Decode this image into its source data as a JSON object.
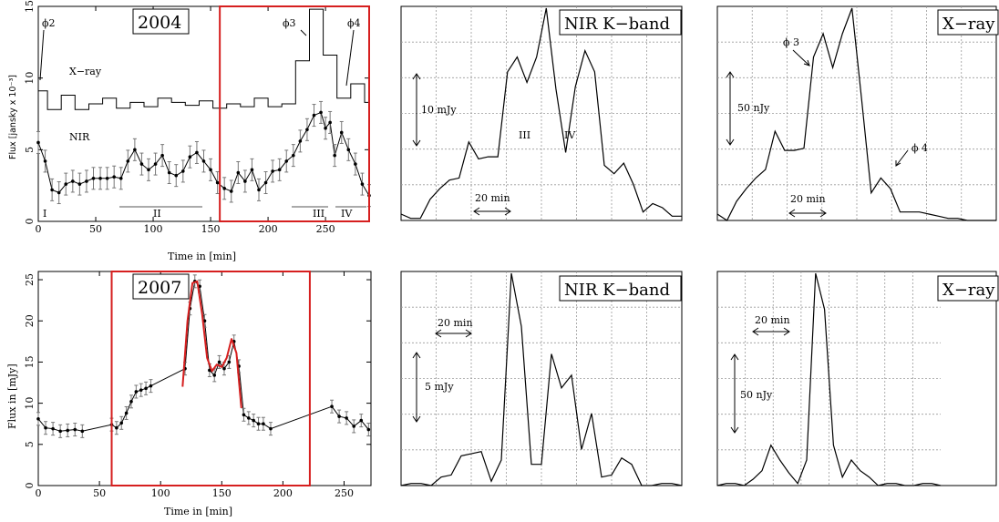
{
  "colors": {
    "highlight": "#d61f1f",
    "ink": "#000000",
    "model": "#d61f1f",
    "grid": "#9a9a9a"
  },
  "chart_data": [
    {
      "id": "a",
      "type": "line",
      "title": "2004",
      "xlabel": "Time in [min]",
      "ylabel": "Flux [jansky x 10⁻³]",
      "xlim": [
        0,
        288
      ],
      "ylim": [
        0,
        15
      ],
      "xticks": [
        0,
        50,
        100,
        150,
        200,
        250
      ],
      "yticks": [
        0,
        5,
        10,
        15
      ],
      "highlight": {
        "x0": 158,
        "x1": 288
      },
      "series": [
        {
          "name": "X-ray",
          "style": "step",
          "x": [
            0,
            8,
            20,
            32,
            44,
            56,
            68,
            80,
            92,
            104,
            116,
            128,
            140,
            152,
            164,
            176,
            188,
            200,
            212,
            224,
            236,
            248,
            260,
            272,
            284,
            288
          ],
          "y": [
            9.1,
            7.8,
            8.8,
            7.8,
            8.2,
            8.6,
            7.9,
            8.3,
            8.0,
            8.6,
            8.3,
            8.1,
            8.4,
            7.9,
            8.2,
            8.0,
            8.6,
            8.0,
            8.2,
            11.2,
            14.8,
            11.6,
            8.6,
            9.6,
            8.3,
            8.3
          ]
        },
        {
          "name": "NIR",
          "style": "line+points",
          "x": [
            0,
            6,
            12,
            18,
            24,
            30,
            36,
            42,
            48,
            54,
            60,
            66,
            72,
            78,
            84,
            90,
            96,
            102,
            108,
            114,
            120,
            126,
            132,
            138,
            144,
            150,
            156,
            162,
            168,
            174,
            180,
            186,
            192,
            198,
            204,
            210,
            216,
            222,
            228,
            234,
            240,
            246,
            250,
            254,
            258,
            264,
            270,
            276,
            282,
            288
          ],
          "y": [
            5.5,
            4.2,
            2.2,
            2.0,
            2.6,
            2.8,
            2.6,
            2.8,
            3.0,
            3.0,
            3.0,
            3.1,
            3.0,
            4.2,
            5.0,
            4.0,
            3.6,
            4.0,
            4.6,
            3.4,
            3.2,
            3.5,
            4.5,
            4.8,
            4.2,
            3.6,
            2.7,
            2.3,
            2.1,
            3.4,
            2.8,
            3.6,
            2.2,
            2.7,
            3.5,
            3.6,
            4.2,
            4.6,
            5.6,
            6.4,
            7.4,
            7.6,
            6.5,
            6.9,
            4.6,
            6.2,
            5.0,
            4.0,
            2.6,
            1.8
          ]
        }
      ],
      "labels": {
        "phi2": "ϕ2",
        "phi3": "ϕ3",
        "phi4": "ϕ4",
        "xray": "X−ray",
        "nir": "NIR",
        "I": "I",
        "II": "II",
        "III": "III",
        "IV": "IV"
      }
    },
    {
      "id": "b",
      "type": "line",
      "title": "NIR  K−band",
      "ylim": [
        0,
        1
      ],
      "series": [
        {
          "name": "NIR K-band",
          "values": [
            0.03,
            0.01,
            0.01,
            0.1,
            0.15,
            0.19,
            0.2,
            0.37,
            0.29,
            0.3,
            0.3,
            0.7,
            0.77,
            0.65,
            0.77,
            1.0,
            0.62,
            0.32,
            0.63,
            0.8,
            0.7,
            0.26,
            0.22,
            0.27,
            0.17,
            0.04,
            0.08,
            0.06,
            0.02,
            0.02
          ]
        }
      ],
      "scale_label": "10 mJy",
      "time_label": "20 min",
      "roman": [
        "III",
        "IV"
      ]
    },
    {
      "id": "c",
      "type": "line",
      "title": "X−ray",
      "ylim": [
        0,
        1
      ],
      "series": [
        {
          "name": "X-ray",
          "values": [
            0.03,
            0.0,
            0.09,
            0.15,
            0.2,
            0.24,
            0.42,
            0.33,
            0.33,
            0.34,
            0.77,
            0.88,
            0.72,
            0.88,
            1.0,
            0.57,
            0.13,
            0.2,
            0.15,
            0.04,
            0.04,
            0.04,
            0.03,
            0.02,
            0.01,
            0.01,
            0.0,
            0.0,
            0.0,
            0.0
          ]
        }
      ],
      "scale_label": "50 nJy",
      "time_label": "20 min",
      "phi": [
        "ϕ 3",
        "ϕ 4"
      ]
    },
    {
      "id": "d",
      "type": "line",
      "title": "2007",
      "xlabel": "Time in [min]",
      "ylabel": "Flux in [mJy]",
      "xlim": [
        0,
        272
      ],
      "ylim": [
        0,
        26
      ],
      "xticks": [
        0,
        50,
        100,
        150,
        200,
        250
      ],
      "yticks": [
        0,
        5,
        10,
        15,
        20,
        25
      ],
      "highlight": {
        "x0": 60,
        "x1": 222
      },
      "series": [
        {
          "name": "NIR",
          "style": "line+points",
          "x": [
            0,
            6,
            12,
            18,
            24,
            30,
            36,
            60,
            64,
            68,
            72,
            76,
            80,
            84,
            88,
            92,
            120,
            124,
            128,
            132,
            136,
            140,
            144,
            148,
            152,
            156,
            160,
            164,
            168,
            172,
            176,
            180,
            184,
            190,
            240,
            246,
            252,
            258,
            264,
            270
          ],
          "y": [
            8.1,
            7.0,
            6.9,
            6.6,
            6.7,
            6.8,
            6.6,
            7.4,
            7.0,
            7.6,
            8.8,
            10.2,
            11.4,
            11.6,
            11.8,
            12.1,
            14.2,
            21.5,
            24.8,
            24.2,
            20.0,
            14.0,
            13.4,
            15.0,
            14.2,
            15.0,
            17.5,
            14.5,
            8.6,
            8.2,
            7.9,
            7.5,
            7.5,
            6.9,
            9.6,
            8.4,
            8.2,
            7.2,
            7.9,
            6.8
          ]
        },
        {
          "name": "Model",
          "style": "line",
          "x": [
            118,
            122,
            126,
            130,
            134,
            138,
            142,
            146,
            150,
            154,
            158,
            162,
            166
          ],
          "y": [
            12.0,
            20.0,
            24.6,
            24.8,
            20.8,
            15.5,
            13.9,
            14.7,
            14.4,
            15.5,
            17.8,
            16.1,
            9.4
          ]
        }
      ]
    },
    {
      "id": "e",
      "type": "line",
      "title": "NIR  K−band",
      "ylim": [
        0,
        1
      ],
      "series": [
        {
          "name": "NIR K-band",
          "values": [
            0.0,
            0.01,
            0.01,
            0.0,
            0.04,
            0.05,
            0.14,
            0.15,
            0.16,
            0.02,
            0.12,
            1.0,
            0.75,
            0.1,
            0.1,
            0.62,
            0.46,
            0.52,
            0.17,
            0.34,
            0.04,
            0.05,
            0.13,
            0.1,
            0.0,
            0.0,
            0.01,
            0.01,
            0.0
          ]
        }
      ],
      "scale_label": "5 mJy",
      "time_label": "20 min"
    },
    {
      "id": "f",
      "type": "line",
      "title": "X−ray",
      "ylim": [
        0,
        1
      ],
      "series": [
        {
          "name": "X-ray",
          "values": [
            0.0,
            0.01,
            0.01,
            0.0,
            0.03,
            0.07,
            0.19,
            0.12,
            0.06,
            0.01,
            0.12,
            1.0,
            0.83,
            0.19,
            0.04,
            0.12,
            0.07,
            0.04,
            0.0,
            0.01,
            0.01,
            0.0,
            0.0,
            0.01,
            0.01,
            0.0
          ]
        }
      ],
      "scale_label": "50 nJy",
      "time_label": "20 min"
    }
  ]
}
